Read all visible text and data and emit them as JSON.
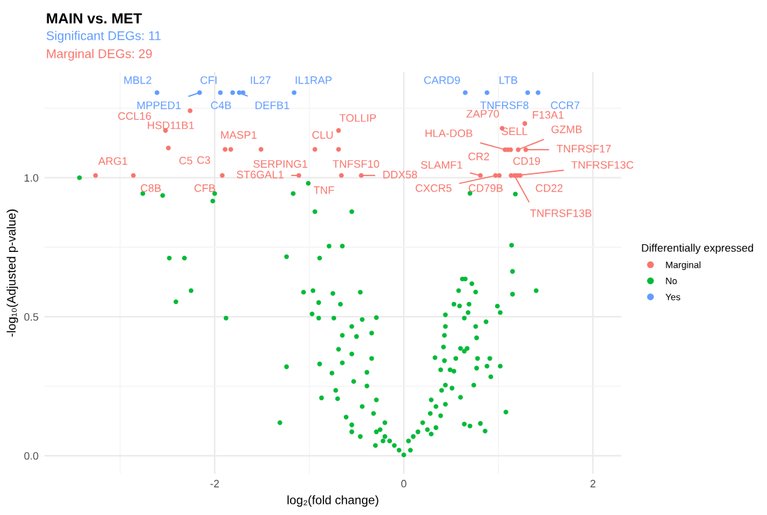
{
  "chart_data": {
    "type": "scatter",
    "title": "MAIN vs. MET",
    "subtitle": "Significant DEGs: 11",
    "xlabel": "log₂(fold change)",
    "ylabel": "-log₁₀(Adjusted p-value)",
    "legend_title": "Differentially expressed",
    "legend": "right",
    "grid": true,
    "marker": "circle",
    "xlim": [
      -3.8,
      2.3
    ],
    "ylim": [
      -0.065,
      1.38
    ],
    "xticks": [
      {
        "value": -2,
        "label": "-2"
      },
      0,
      2
    ],
    "yticks": [
      {
        "value": 0,
        "label": "0.0"
      },
      {
        "value": 0.5,
        "label": "0.5"
      },
      {
        "value": 1,
        "label": "1.0"
      }
    ],
    "series": [
      {
        "name": "Marginal",
        "color": "#f8766d",
        "x": [
          -2.26,
          -2.52,
          -2.49,
          -1.89,
          -1.83,
          -1.51,
          -3.26,
          -2.86,
          -1.92,
          -1.11,
          -0.69,
          -0.94,
          -0.69,
          -0.66,
          -0.45,
          1.04,
          1.28,
          1.07,
          1.13,
          1.1,
          1.21,
          1.29,
          0.81,
          0.97,
          1.01,
          1.135,
          1.23,
          1.2,
          1.17
        ],
        "values": [
          1.241,
          1.17,
          1.107,
          1.102,
          1.102,
          1.102,
          1.008,
          1.008,
          1.008,
          1.008,
          1.17,
          1.102,
          1.102,
          1.008,
          1.008,
          1.178,
          1.195,
          1.101,
          1.101,
          1.101,
          1.101,
          1.101,
          1.008,
          1.008,
          1.008,
          1.008,
          1.008,
          1.008,
          1.008
        ]
      },
      {
        "name": "No",
        "color": "#00ba38",
        "x": [
          -3.43,
          -2.76,
          -2.55,
          -2.02,
          -2.0,
          -1.17,
          -1.01,
          -0.94,
          -0.55,
          -2.48,
          -2.32,
          -1.24,
          -0.89,
          -0.79,
          -0.65,
          -2.25,
          -2.41,
          -1.88,
          -1.24,
          -1.31,
          -1.06,
          -0.96,
          -0.9,
          -0.97,
          -0.9,
          -0.75,
          -0.74,
          -0.67,
          -0.46,
          -0.89,
          -0.87,
          -0.76,
          -0.72,
          -0.7,
          -0.61,
          -0.55,
          -0.55,
          -0.46,
          -0.65,
          -0.69,
          -0.65,
          -0.55,
          -0.5,
          -0.44,
          -0.55,
          -0.53,
          -0.39,
          -0.34,
          -0.34,
          -0.32,
          -0.3,
          -0.25,
          -0.44,
          -0.39,
          -0.29,
          -0.2,
          -0.22,
          1.15,
          1.15,
          1.4,
          1.08,
          0.62,
          0.65,
          0.72,
          0.58,
          0.76,
          0.53,
          0.59,
          0.69,
          0.99,
          1.02,
          0.87,
          0.44,
          0.64,
          0.68,
          0.44,
          0.76,
          0.77,
          0.43,
          0.42,
          0.6,
          0.67,
          0.64,
          0.33,
          0.43,
          0.55,
          0.78,
          0.91,
          0.88,
          1.02,
          0.77,
          0.92,
          0.39,
          0.49,
          0.53,
          0.44,
          0.74,
          0.4,
          0.51,
          0.6,
          0.29,
          0.34,
          0.44,
          0.28,
          0.39,
          0.64,
          0.7,
          0.81,
          0.86,
          0.2,
          0.25,
          0.15,
          0.1,
          0.05,
          0.0,
          -0.05,
          -0.1,
          -0.15,
          -0.2,
          0.07,
          0.29,
          0.34,
          -0.29,
          -0.29,
          1.14,
          0.7,
          1.18
        ],
        "values": [
          1.0,
          0.943,
          0.936,
          0.916,
          0.943,
          0.943,
          0.98,
          0.878,
          0.878,
          0.711,
          0.711,
          0.716,
          0.711,
          0.754,
          0.754,
          0.594,
          0.554,
          0.495,
          0.32,
          0.119,
          0.588,
          0.594,
          0.551,
          0.51,
          0.495,
          0.584,
          0.495,
          0.545,
          0.588,
          0.33,
          0.208,
          0.297,
          0.235,
          0.205,
          0.139,
          0.111,
          0.086,
          0.069,
          0.433,
          0.383,
          0.334,
          0.366,
          0.429,
          0.49,
          0.465,
          0.267,
          0.251,
          0.35,
          0.441,
          0.152,
          0.037,
          0.094,
          0.177,
          0.3,
          0.201,
          0.119,
          0.053,
          0.663,
          0.581,
          0.594,
          0.157,
          0.636,
          0.636,
          0.619,
          0.594,
          0.589,
          0.545,
          0.539,
          0.545,
          0.538,
          0.515,
          0.482,
          0.507,
          0.495,
          0.515,
          0.465,
          0.465,
          0.424,
          0.433,
          0.391,
          0.386,
          0.386,
          0.376,
          0.353,
          0.342,
          0.35,
          0.35,
          0.35,
          0.322,
          0.322,
          0.315,
          0.284,
          0.309,
          0.309,
          0.304,
          0.254,
          0.254,
          0.235,
          0.243,
          0.21,
          0.201,
          0.177,
          0.185,
          0.152,
          0.144,
          0.114,
          0.107,
          0.116,
          0.089,
          0.119,
          0.094,
          0.086,
          0.069,
          0.053,
          0.003,
          0.02,
          0.037,
          0.053,
          0.069,
          0.02,
          0.078,
          0.101,
          0.086,
          0.497,
          0.757,
          0.944,
          0.941
        ]
      },
      {
        "name": "Yes",
        "color": "#619cff",
        "x": [
          -2.61,
          -2.16,
          -1.94,
          -1.81,
          -1.7,
          -1.74,
          -1.16,
          0.65,
          0.88,
          1.31,
          1.42
        ],
        "values": [
          1.306,
          1.306,
          1.306,
          1.306,
          1.306,
          1.306,
          1.306,
          1.306,
          1.306,
          1.306,
          1.306
        ]
      }
    ],
    "annotations": [
      "Marginal DEGs: 29",
      {
        "text": "MBL2",
        "x": -2.61,
        "y": 1.306
      },
      {
        "text": "MPPED1",
        "x": -2.16,
        "y": 1.306
      },
      {
        "text": "CFI",
        "x": -1.94,
        "y": 1.306
      },
      {
        "text": "C4B",
        "x": -1.81,
        "y": 1.306
      },
      {
        "text": "IL27",
        "x": -1.7,
        "y": 1.306
      },
      {
        "text": "DEFB1",
        "x": -1.74,
        "y": 1.306
      },
      {
        "text": "IL1RAP",
        "x": -1.16,
        "y": 1.306
      },
      {
        "text": "CARD9",
        "x": 0.65,
        "y": 1.306
      },
      {
        "text": "TNFRSF8",
        "x": 0.88,
        "y": 1.306
      },
      {
        "text": "LTB",
        "x": 1.31,
        "y": 1.306
      },
      {
        "text": "CCR7",
        "x": 1.42,
        "y": 1.306
      },
      {
        "text": "HSD11B1",
        "x": -2.26,
        "y": 1.241
      },
      {
        "text": "CCL16",
        "x": -2.52,
        "y": 1.17
      },
      {
        "text": "C5",
        "x": -2.49,
        "y": 1.107
      },
      {
        "text": "MASP1",
        "x": -1.89,
        "y": 1.102
      },
      {
        "text": "C3",
        "x": -1.83,
        "y": 1.102
      },
      {
        "text": "SERPING1",
        "x": -1.51,
        "y": 1.102
      },
      {
        "text": "ARG1",
        "x": -3.26,
        "y": 1.008
      },
      {
        "text": "C8B",
        "x": -2.86,
        "y": 1.008
      },
      {
        "text": "CFB",
        "x": -1.92,
        "y": 1.008
      },
      {
        "text": "ST6GAL1",
        "x": -1.11,
        "y": 1.008
      },
      {
        "text": "TOLLIP",
        "x": -0.69,
        "y": 1.17
      },
      {
        "text": "CLU",
        "x": -0.94,
        "y": 1.102
      },
      {
        "text": "TNFSF10",
        "x": -0.69,
        "y": 1.102
      },
      {
        "text": "TNF",
        "x": -0.66,
        "y": 1.008
      },
      {
        "text": "DDX58",
        "x": -0.45,
        "y": 1.008
      },
      {
        "text": "ZAP70",
        "x": 1.04,
        "y": 1.178
      },
      {
        "text": "F13A1",
        "x": 1.28,
        "y": 1.195
      },
      {
        "text": "HLA-DOB",
        "x": 1.07,
        "y": 1.101
      },
      {
        "text": "SELL",
        "x": 1.13,
        "y": 1.101
      },
      {
        "text": "CR2",
        "x": 1.1,
        "y": 1.101
      },
      {
        "text": "GZMB",
        "x": 1.21,
        "y": 1.101
      },
      {
        "text": "TNFRSF17",
        "x": 1.29,
        "y": 1.101
      },
      {
        "text": "SLAMF1",
        "x": 0.81,
        "y": 1.008
      },
      {
        "text": "CXCR5",
        "x": 0.97,
        "y": 1.008
      },
      {
        "text": "CD79B",
        "x": 1.01,
        "y": 1.008
      },
      {
        "text": "CD19",
        "x": 1.135,
        "y": 1.008
      },
      {
        "text": "CD22",
        "x": 1.23,
        "y": 1.008
      },
      {
        "text": "TNFRSF13C",
        "x": 1.2,
        "y": 1.008
      },
      {
        "text": "TNFRSF13B",
        "x": 1.17,
        "y": 1.008
      }
    ]
  }
}
